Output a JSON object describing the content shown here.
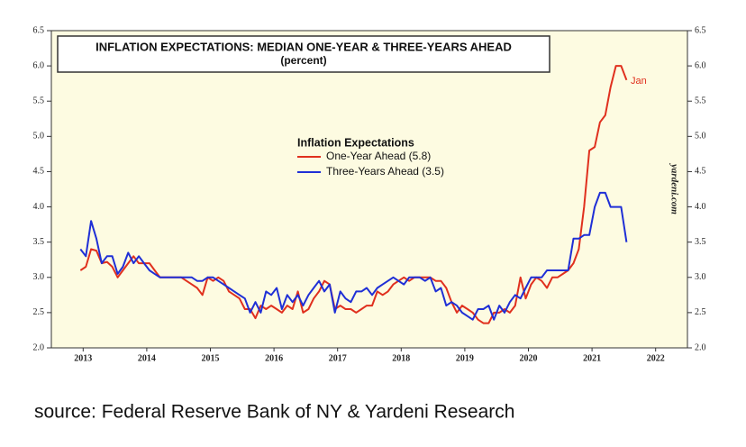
{
  "chart_data": {
    "type": "line",
    "title": "INFLATION EXPECTATIONS: MEDIAN ONE-YEAR & THREE-YEARS AHEAD",
    "subtitle": "(percent)",
    "legend_title": "Inflation Expectations",
    "annotation": "Jan",
    "watermark": "yardeni.com",
    "source": "source: Federal Reserve Bank of NY & Yardeni Research",
    "xlim": [
      2013,
      2023
    ],
    "xticks": [
      {
        "value": 2013.5,
        "label": "2013"
      },
      {
        "value": 2014.5,
        "label": "2014"
      },
      {
        "value": 2015.5,
        "label": "2015"
      },
      {
        "value": 2016.5,
        "label": "2016"
      },
      {
        "value": 2017.5,
        "label": "2017"
      },
      {
        "value": 2018.5,
        "label": "2018"
      },
      {
        "value": 2019.5,
        "label": "2019"
      },
      {
        "value": 2020.5,
        "label": "2020"
      },
      {
        "value": 2021.5,
        "label": "2021"
      },
      {
        "value": 2022.5,
        "label": "2022"
      }
    ],
    "ylim": [
      2,
      6.5
    ],
    "yticks": [
      {
        "value": 2,
        "label": "2.0"
      },
      {
        "value": 2.5,
        "label": "2.5"
      },
      {
        "value": 3,
        "label": "3.0"
      },
      {
        "value": 3.5,
        "label": "3.5"
      },
      {
        "value": 4,
        "label": "4.0"
      },
      {
        "value": 4.5,
        "label": "4.5"
      },
      {
        "value": 5,
        "label": "5.0"
      },
      {
        "value": 5.5,
        "label": "5.5"
      },
      {
        "value": 6,
        "label": "6.0"
      },
      {
        "value": 6.5,
        "label": "6.5"
      }
    ],
    "x": [
      2013.458,
      2013.542,
      2013.625,
      2013.708,
      2013.792,
      2013.875,
      2013.958,
      2014.042,
      2014.125,
      2014.208,
      2014.292,
      2014.375,
      2014.458,
      2014.542,
      2014.625,
      2014.708,
      2014.792,
      2014.875,
      2014.958,
      2015.042,
      2015.125,
      2015.208,
      2015.292,
      2015.375,
      2015.458,
      2015.542,
      2015.625,
      2015.708,
      2015.792,
      2015.875,
      2015.958,
      2016.042,
      2016.125,
      2016.208,
      2016.292,
      2016.375,
      2016.458,
      2016.542,
      2016.625,
      2016.708,
      2016.792,
      2016.875,
      2016.958,
      2017.042,
      2017.125,
      2017.208,
      2017.292,
      2017.375,
      2017.458,
      2017.542,
      2017.625,
      2017.708,
      2017.792,
      2017.875,
      2017.958,
      2018.042,
      2018.125,
      2018.208,
      2018.292,
      2018.375,
      2018.458,
      2018.542,
      2018.625,
      2018.708,
      2018.792,
      2018.875,
      2018.958,
      2019.042,
      2019.125,
      2019.208,
      2019.292,
      2019.375,
      2019.458,
      2019.542,
      2019.625,
      2019.708,
      2019.792,
      2019.875,
      2019.958,
      2020.042,
      2020.125,
      2020.208,
      2020.292,
      2020.375,
      2020.458,
      2020.542,
      2020.625,
      2020.708,
      2020.792,
      2020.875,
      2020.958,
      2021.042,
      2021.125,
      2021.208,
      2021.292,
      2021.375,
      2021.458,
      2021.542,
      2021.625,
      2021.708,
      2021.792,
      2021.875,
      2021.958,
      2022.042
    ],
    "series": [
      {
        "name": "One-Year Ahead (5.8)",
        "color": "#e0301e",
        "values": [
          3.1,
          3.15,
          3.4,
          3.38,
          3.2,
          3.22,
          3.15,
          3.0,
          3.1,
          3.2,
          3.3,
          3.2,
          3.2,
          3.2,
          3.1,
          3.0,
          3.0,
          3.0,
          3.0,
          3.0,
          2.95,
          2.9,
          2.85,
          2.75,
          3.0,
          2.95,
          3.0,
          2.95,
          2.8,
          2.75,
          2.7,
          2.55,
          2.55,
          2.42,
          2.6,
          2.55,
          2.6,
          2.55,
          2.5,
          2.6,
          2.55,
          2.8,
          2.5,
          2.55,
          2.7,
          2.8,
          2.95,
          2.9,
          2.55,
          2.6,
          2.55,
          2.55,
          2.5,
          2.55,
          2.6,
          2.6,
          2.8,
          2.75,
          2.8,
          2.9,
          2.95,
          3.0,
          2.95,
          3.0,
          3.0,
          3.0,
          3.0,
          2.95,
          2.95,
          2.85,
          2.65,
          2.5,
          2.6,
          2.55,
          2.5,
          2.4,
          2.35,
          2.35,
          2.5,
          2.5,
          2.55,
          2.5,
          2.6,
          3.0,
          2.7,
          2.9,
          3.0,
          2.95,
          2.85,
          3.0,
          3.0,
          3.05,
          3.1,
          3.2,
          3.4,
          4.0,
          4.8,
          4.85,
          5.2,
          5.3,
          5.7,
          6.0,
          6.0,
          5.8
        ]
      },
      {
        "name": "Three-Years Ahead (3.5)",
        "color": "#1f2fd6",
        "values": [
          3.4,
          3.3,
          3.8,
          3.55,
          3.2,
          3.3,
          3.3,
          3.05,
          3.15,
          3.35,
          3.2,
          3.3,
          3.2,
          3.1,
          3.05,
          3.0,
          3.0,
          3.0,
          3.0,
          3.0,
          3.0,
          3.0,
          2.95,
          2.95,
          3.0,
          3.0,
          2.95,
          2.9,
          2.85,
          2.8,
          2.75,
          2.7,
          2.5,
          2.65,
          2.5,
          2.8,
          2.75,
          2.85,
          2.55,
          2.75,
          2.65,
          2.75,
          2.6,
          2.75,
          2.85,
          2.95,
          2.8,
          2.9,
          2.5,
          2.8,
          2.7,
          2.65,
          2.8,
          2.8,
          2.85,
          2.75,
          2.85,
          2.9,
          2.95,
          3.0,
          2.95,
          2.9,
          3.0,
          3.0,
          3.0,
          2.95,
          3.0,
          2.8,
          2.85,
          2.6,
          2.65,
          2.6,
          2.5,
          2.45,
          2.4,
          2.55,
          2.55,
          2.6,
          2.4,
          2.6,
          2.5,
          2.65,
          2.75,
          2.7,
          2.85,
          3.0,
          3.0,
          3.0,
          3.1,
          3.1,
          3.1,
          3.1,
          3.1,
          3.55,
          3.55,
          3.6,
          3.6,
          4.0,
          4.2,
          4.2,
          4.0,
          4.0,
          4.0,
          3.5
        ]
      }
    ]
  }
}
